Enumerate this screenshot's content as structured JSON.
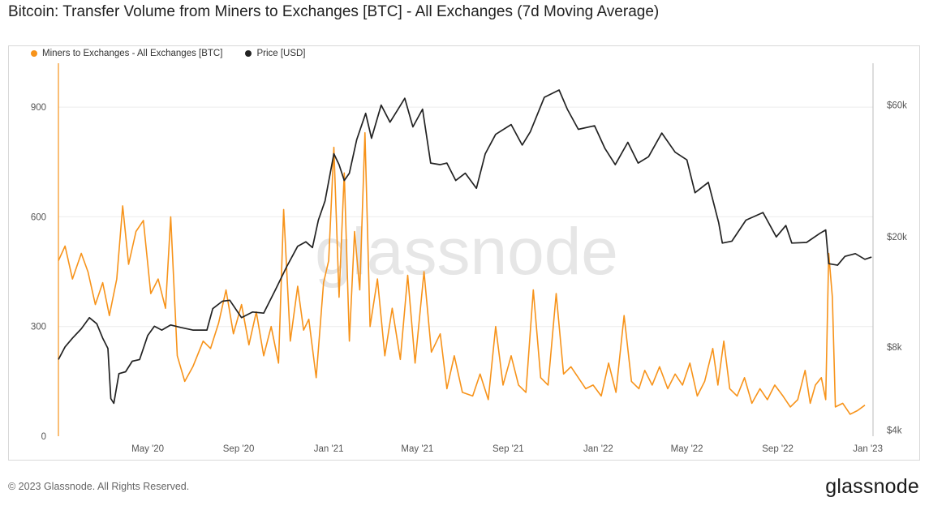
{
  "chart_data": {
    "type": "line",
    "title": "Bitcoin: Transfer Volume from Miners to Exchanges [BTC] - All Exchanges (7d Moving Average)",
    "watermark": "glassnode",
    "x_tick_labels": [
      "May '20",
      "Sep '20",
      "Jan '21",
      "May '21",
      "Sep '21",
      "Jan '22",
      "May '22",
      "Sep '22",
      "Jan '23"
    ],
    "y_left": {
      "ticks": [
        0,
        300,
        600,
        900
      ],
      "ylim": [
        0,
        1020
      ]
    },
    "y_right": {
      "scale": "log",
      "ticks": [
        4000,
        8000,
        20000,
        60000
      ],
      "tick_labels": [
        "$4k",
        "$8k",
        "$20k",
        "$60k"
      ],
      "ylim": [
        3800,
        85000
      ]
    },
    "legend_position": "top-left",
    "grid": "horizontal",
    "series": [
      {
        "name": "Miners to Exchanges - All Exchanges [BTC]",
        "axis": "left",
        "color": "#f7931a",
        "points": [
          [
            "2020-01-01",
            480
          ],
          [
            "2020-01-10",
            520
          ],
          [
            "2020-01-20",
            430
          ],
          [
            "2020-02-01",
            500
          ],
          [
            "2020-02-10",
            450
          ],
          [
            "2020-02-20",
            360
          ],
          [
            "2020-03-01",
            420
          ],
          [
            "2020-03-10",
            330
          ],
          [
            "2020-03-20",
            430
          ],
          [
            "2020-03-28",
            630
          ],
          [
            "2020-04-05",
            470
          ],
          [
            "2020-04-15",
            560
          ],
          [
            "2020-04-25",
            590
          ],
          [
            "2020-05-05",
            390
          ],
          [
            "2020-05-15",
            430
          ],
          [
            "2020-05-25",
            350
          ],
          [
            "2020-06-01",
            600
          ],
          [
            "2020-06-10",
            220
          ],
          [
            "2020-06-20",
            150
          ],
          [
            "2020-07-01",
            190
          ],
          [
            "2020-07-15",
            260
          ],
          [
            "2020-07-25",
            240
          ],
          [
            "2020-08-05",
            310
          ],
          [
            "2020-08-15",
            400
          ],
          [
            "2020-08-25",
            280
          ],
          [
            "2020-09-05",
            360
          ],
          [
            "2020-09-15",
            250
          ],
          [
            "2020-09-25",
            340
          ],
          [
            "2020-10-05",
            220
          ],
          [
            "2020-10-15",
            300
          ],
          [
            "2020-10-25",
            200
          ],
          [
            "2020-11-01",
            620
          ],
          [
            "2020-11-10",
            260
          ],
          [
            "2020-11-20",
            410
          ],
          [
            "2020-11-28",
            290
          ],
          [
            "2020-12-05",
            320
          ],
          [
            "2020-12-15",
            160
          ],
          [
            "2020-12-25",
            420
          ],
          [
            "2021-01-01",
            480
          ],
          [
            "2021-01-08",
            790
          ],
          [
            "2021-01-15",
            380
          ],
          [
            "2021-01-22",
            720
          ],
          [
            "2021-01-29",
            260
          ],
          [
            "2021-02-05",
            560
          ],
          [
            "2021-02-12",
            400
          ],
          [
            "2021-02-19",
            830
          ],
          [
            "2021-02-26",
            300
          ],
          [
            "2021-03-08",
            430
          ],
          [
            "2021-03-18",
            220
          ],
          [
            "2021-03-28",
            350
          ],
          [
            "2021-04-08",
            210
          ],
          [
            "2021-04-18",
            440
          ],
          [
            "2021-04-28",
            200
          ],
          [
            "2021-05-10",
            450
          ],
          [
            "2021-05-20",
            230
          ],
          [
            "2021-06-01",
            280
          ],
          [
            "2021-06-10",
            130
          ],
          [
            "2021-06-20",
            220
          ],
          [
            "2021-07-01",
            120
          ],
          [
            "2021-07-15",
            110
          ],
          [
            "2021-07-25",
            170
          ],
          [
            "2021-08-05",
            100
          ],
          [
            "2021-08-15",
            300
          ],
          [
            "2021-08-25",
            140
          ],
          [
            "2021-09-05",
            220
          ],
          [
            "2021-09-15",
            140
          ],
          [
            "2021-09-25",
            120
          ],
          [
            "2021-10-05",
            400
          ],
          [
            "2021-10-15",
            160
          ],
          [
            "2021-10-25",
            140
          ],
          [
            "2021-11-05",
            390
          ],
          [
            "2021-11-15",
            170
          ],
          [
            "2021-11-25",
            190
          ],
          [
            "2021-12-05",
            160
          ],
          [
            "2021-12-15",
            130
          ],
          [
            "2021-12-25",
            140
          ],
          [
            "2022-01-05",
            110
          ],
          [
            "2022-01-15",
            200
          ],
          [
            "2022-01-25",
            120
          ],
          [
            "2022-02-05",
            330
          ],
          [
            "2022-02-15",
            150
          ],
          [
            "2022-02-25",
            130
          ],
          [
            "2022-03-05",
            180
          ],
          [
            "2022-03-15",
            140
          ],
          [
            "2022-03-25",
            190
          ],
          [
            "2022-04-05",
            130
          ],
          [
            "2022-04-15",
            170
          ],
          [
            "2022-04-25",
            140
          ],
          [
            "2022-05-05",
            200
          ],
          [
            "2022-05-15",
            110
          ],
          [
            "2022-05-25",
            150
          ],
          [
            "2022-06-05",
            240
          ],
          [
            "2022-06-12",
            140
          ],
          [
            "2022-06-20",
            260
          ],
          [
            "2022-06-28",
            130
          ],
          [
            "2022-07-08",
            110
          ],
          [
            "2022-07-18",
            160
          ],
          [
            "2022-07-28",
            90
          ],
          [
            "2022-08-08",
            130
          ],
          [
            "2022-08-18",
            100
          ],
          [
            "2022-08-28",
            140
          ],
          [
            "2022-09-08",
            110
          ],
          [
            "2022-09-18",
            80
          ],
          [
            "2022-09-28",
            100
          ],
          [
            "2022-10-08",
            180
          ],
          [
            "2022-10-15",
            90
          ],
          [
            "2022-10-22",
            140
          ],
          [
            "2022-10-30",
            160
          ],
          [
            "2022-11-05",
            100
          ],
          [
            "2022-11-09",
            500
          ],
          [
            "2022-11-14",
            380
          ],
          [
            "2022-11-18",
            80
          ],
          [
            "2022-11-28",
            90
          ],
          [
            "2022-12-08",
            60
          ],
          [
            "2022-12-18",
            70
          ],
          [
            "2022-12-28",
            85
          ]
        ]
      },
      {
        "name": "Price [USD]",
        "axis": "right",
        "color": "#222222",
        "points": [
          [
            "2020-01-01",
            7200
          ],
          [
            "2020-01-10",
            8000
          ],
          [
            "2020-01-20",
            8600
          ],
          [
            "2020-02-01",
            9300
          ],
          [
            "2020-02-12",
            10200
          ],
          [
            "2020-02-22",
            9700
          ],
          [
            "2020-03-01",
            8600
          ],
          [
            "2020-03-08",
            7900
          ],
          [
            "2020-03-12",
            5200
          ],
          [
            "2020-03-16",
            5000
          ],
          [
            "2020-03-23",
            6400
          ],
          [
            "2020-04-01",
            6500
          ],
          [
            "2020-04-10",
            7100
          ],
          [
            "2020-04-20",
            7200
          ],
          [
            "2020-05-01",
            8800
          ],
          [
            "2020-05-10",
            9500
          ],
          [
            "2020-05-20",
            9200
          ],
          [
            "2020-06-01",
            9600
          ],
          [
            "2020-06-15",
            9400
          ],
          [
            "2020-07-01",
            9200
          ],
          [
            "2020-07-20",
            9200
          ],
          [
            "2020-07-28",
            11000
          ],
          [
            "2020-08-10",
            11700
          ],
          [
            "2020-08-20",
            11800
          ],
          [
            "2020-09-05",
            10200
          ],
          [
            "2020-09-20",
            10700
          ],
          [
            "2020-10-05",
            10600
          ],
          [
            "2020-10-21",
            12900
          ],
          [
            "2020-11-05",
            15600
          ],
          [
            "2020-11-20",
            18500
          ],
          [
            "2020-12-01",
            19200
          ],
          [
            "2020-12-10",
            18300
          ],
          [
            "2020-12-18",
            23000
          ],
          [
            "2020-12-27",
            27000
          ],
          [
            "2021-01-08",
            40000
          ],
          [
            "2021-01-15",
            36500
          ],
          [
            "2021-01-22",
            32000
          ],
          [
            "2021-01-29",
            34000
          ],
          [
            "2021-02-08",
            45000
          ],
          [
            "2021-02-20",
            56000
          ],
          [
            "2021-02-28",
            45500
          ],
          [
            "2021-03-13",
            60000
          ],
          [
            "2021-03-25",
            52000
          ],
          [
            "2021-04-05",
            58000
          ],
          [
            "2021-04-14",
            63500
          ],
          [
            "2021-04-25",
            50000
          ],
          [
            "2021-05-08",
            58000
          ],
          [
            "2021-05-19",
            37000
          ],
          [
            "2021-06-01",
            36500
          ],
          [
            "2021-06-10",
            37000
          ],
          [
            "2021-06-22",
            32000
          ],
          [
            "2021-07-05",
            34000
          ],
          [
            "2021-07-20",
            30000
          ],
          [
            "2021-08-01",
            40000
          ],
          [
            "2021-08-15",
            47000
          ],
          [
            "2021-09-05",
            51000
          ],
          [
            "2021-09-20",
            43000
          ],
          [
            "2021-10-01",
            48000
          ],
          [
            "2021-10-20",
            64000
          ],
          [
            "2021-11-09",
            68000
          ],
          [
            "2021-11-20",
            58000
          ],
          [
            "2021-12-05",
            49000
          ],
          [
            "2021-12-27",
            50500
          ],
          [
            "2022-01-10",
            41800
          ],
          [
            "2022-01-24",
            36500
          ],
          [
            "2022-02-10",
            44000
          ],
          [
            "2022-02-24",
            37000
          ],
          [
            "2022-03-10",
            39000
          ],
          [
            "2022-03-28",
            47500
          ],
          [
            "2022-04-15",
            40500
          ],
          [
            "2022-05-01",
            38000
          ],
          [
            "2022-05-12",
            28900
          ],
          [
            "2022-05-30",
            31500
          ],
          [
            "2022-06-13",
            22500
          ],
          [
            "2022-06-18",
            19000
          ],
          [
            "2022-07-01",
            19300
          ],
          [
            "2022-07-20",
            23000
          ],
          [
            "2022-08-12",
            24500
          ],
          [
            "2022-08-30",
            20000
          ],
          [
            "2022-09-12",
            22000
          ],
          [
            "2022-09-20",
            19000
          ],
          [
            "2022-10-10",
            19100
          ],
          [
            "2022-10-28",
            20600
          ],
          [
            "2022-11-05",
            21200
          ],
          [
            "2022-11-09",
            16000
          ],
          [
            "2022-11-21",
            15800
          ],
          [
            "2022-12-01",
            17000
          ],
          [
            "2022-12-15",
            17400
          ],
          [
            "2022-12-28",
            16600
          ],
          [
            "2023-01-06",
            16900
          ]
        ]
      }
    ]
  },
  "footer": {
    "copyright": "© 2023 Glassnode. All Rights Reserved.",
    "brand": "glassnode"
  }
}
